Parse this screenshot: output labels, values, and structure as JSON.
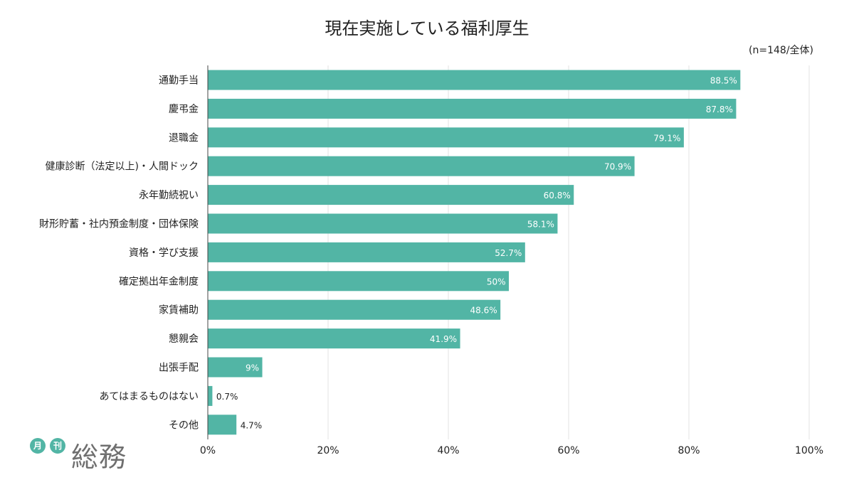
{
  "chart_data": {
    "type": "bar",
    "orientation": "horizontal",
    "title": "現在実施している福利厚生",
    "subtitle": "(n=148/全体)",
    "categories": [
      "通勤手当",
      "慶弔金",
      "退職金",
      "健康診断（法定以上)・人間ドック",
      "永年勤続祝い",
      "財形貯蓄・社内預金制度・団体保険",
      "資格・学び支援",
      "確定拠出年金制度",
      "家賃補助",
      "懇親会",
      "出張手配",
      "あてはまるものはない",
      "その他"
    ],
    "values": [
      88.5,
      87.8,
      79.1,
      70.9,
      60.8,
      58.1,
      52.7,
      50,
      48.6,
      41.9,
      9,
      0.7,
      4.7
    ],
    "value_labels": [
      "88.5%",
      "87.8%",
      "79.1%",
      "70.9%",
      "60.8%",
      "58.1%",
      "52.7%",
      "50%",
      "48.6%",
      "41.9%",
      "9%",
      "0.7%",
      "4.7%"
    ],
    "xlim": [
      0,
      100
    ],
    "x_ticks": [
      0,
      20,
      40,
      60,
      80,
      100
    ],
    "x_tick_labels": [
      "0%",
      "20%",
      "40%",
      "60%",
      "80%",
      "100%"
    ],
    "grid": true,
    "bar_color": "#52b5a5",
    "legend": "none"
  },
  "logo": {
    "badge_1": "月",
    "badge_2": "刊",
    "word": "総務"
  }
}
